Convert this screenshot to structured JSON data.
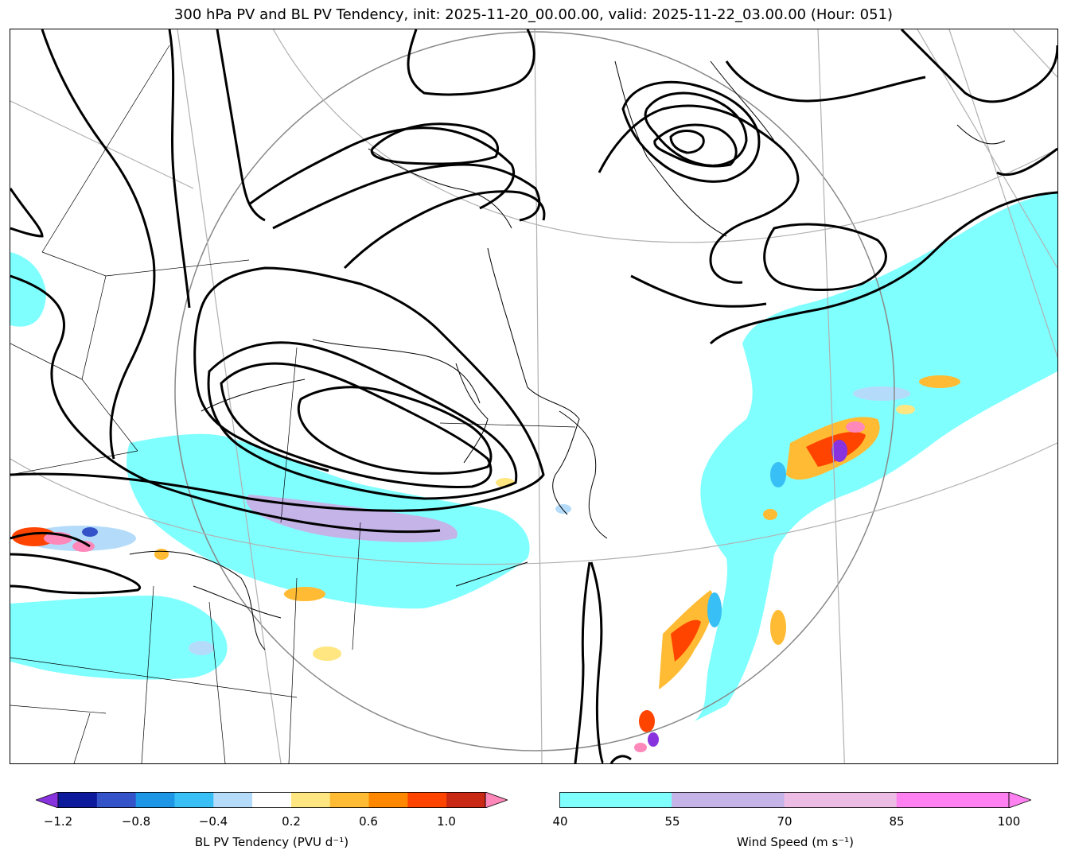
{
  "title": "300 hPa PV and BL PV Tendency, init: 2025-11-20_00.00.00, valid: 2025-11-22_03.00.00 (Hour: 051)",
  "colorbar_left": {
    "label": "BL PV Tendency (PVU d⁻¹)",
    "ticks": [
      "−1.2",
      "−0.8",
      "−0.4",
      "0.2",
      "0.6",
      "1.0"
    ],
    "colors": [
      "#0d1a9c",
      "#3553c8",
      "#1d96e6",
      "#38bff5",
      "#b4dcfa",
      "#ffffff",
      "#ffe680",
      "#ffbb33",
      "#ff8800",
      "#ff4400",
      "#c82814"
    ],
    "under_color": "#8833dd",
    "over_color": "#ff88bb"
  },
  "colorbar_right": {
    "label": "Wind Speed (m s⁻¹)",
    "ticks": [
      "40",
      "55",
      "70",
      "85",
      "100"
    ],
    "colors": [
      "#80ffff",
      "#c4b4e8",
      "#ecbce4",
      "#ff80f0"
    ],
    "over_color": "#ff80f0"
  },
  "map_colors": {
    "jet_cyan": "#80ffff",
    "jet_lavender": "#c4b4e8",
    "pv_contour": "#000000",
    "graticule": "#b0b0b0"
  }
}
